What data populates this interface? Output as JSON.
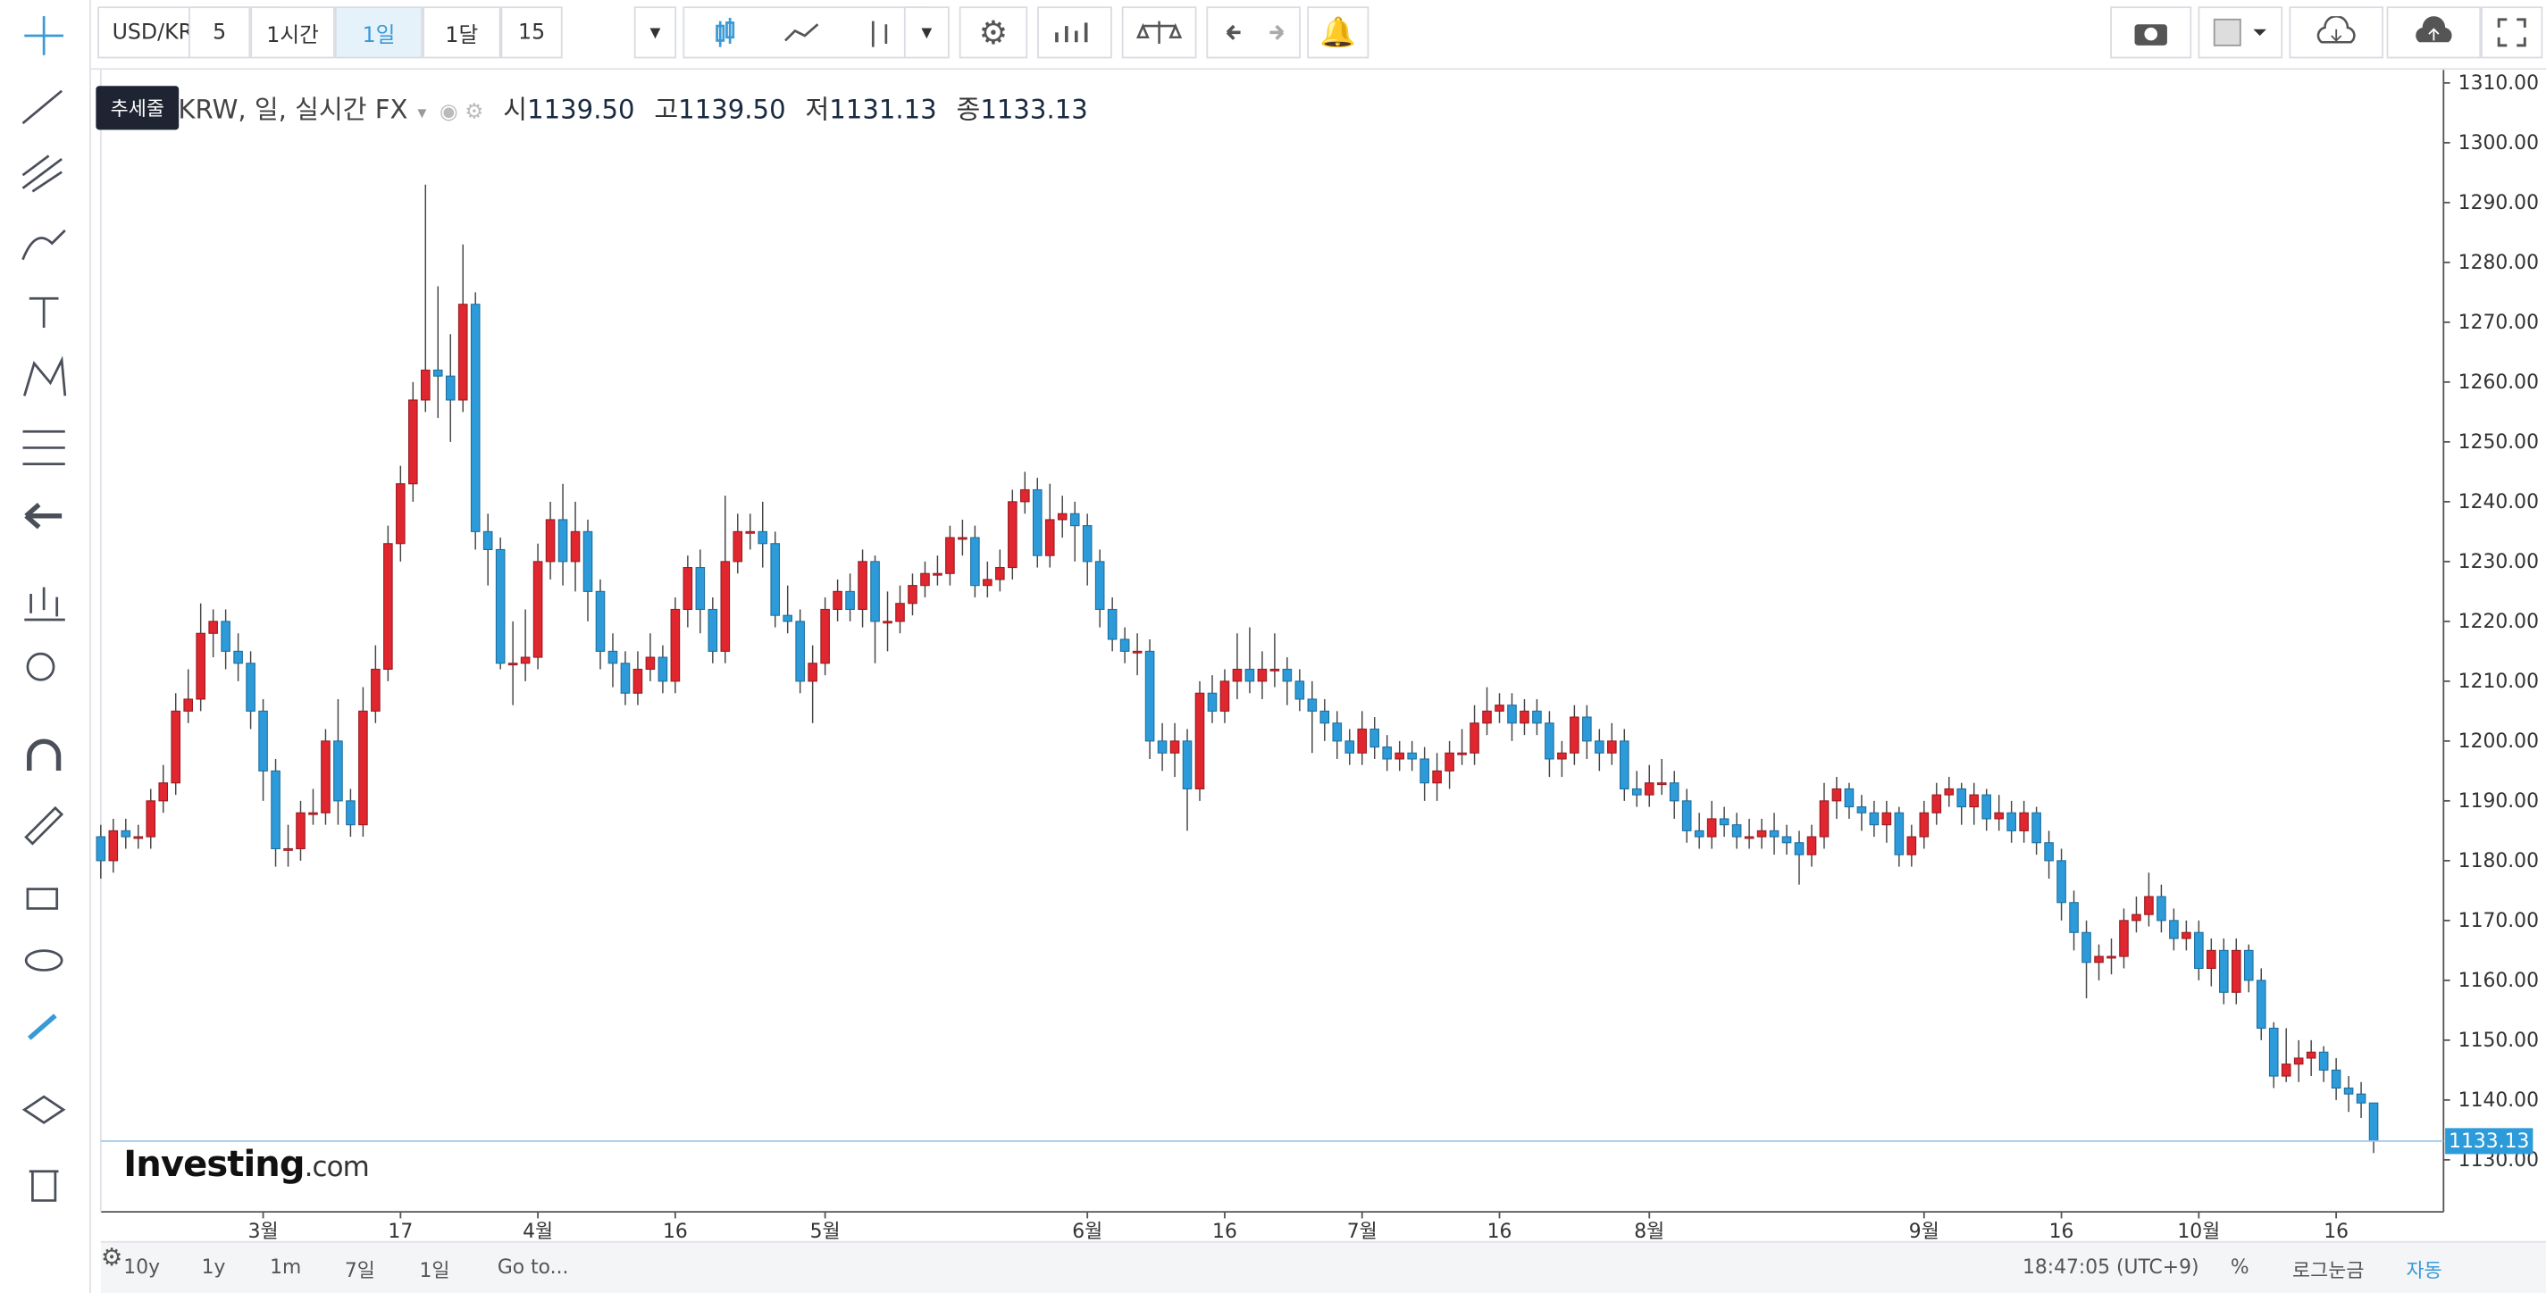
{
  "toolbar": {
    "symbol": "USD/KRW",
    "intervals": [
      "5",
      "1시간",
      "1일",
      "1달",
      "15"
    ],
    "active_interval": 2
  },
  "tooltip": "추세줄",
  "legend": {
    "title": "USD/KRW, 일, 실시간 FX",
    "ohlc": [
      {
        "label": "시",
        "value": "1139.50"
      },
      {
        "label": "고",
        "value": "1139.50"
      },
      {
        "label": "저",
        "value": "1131.13"
      },
      {
        "label": "종",
        "value": "1133.13"
      }
    ]
  },
  "watermark": {
    "brand": "Investing",
    "suffix": ".com"
  },
  "bottom_bar": {
    "ranges": [
      "10y",
      "1y",
      "1m",
      "7일",
      "1일"
    ],
    "goto": "Go to...",
    "time": "18:47:05 (UTC+9)",
    "options": [
      "%",
      "로그눈금",
      "자동"
    ]
  },
  "chart_data": {
    "type": "candlestick",
    "up_color": "#e0262f",
    "down_color": "#2d9bd9",
    "categories": [
      null,
      null,
      null,
      null,
      null,
      null,
      null,
      null,
      null,
      null,
      null,
      null,
      null,
      "3월",
      null,
      null,
      null,
      null,
      null,
      null,
      null,
      null,
      null,
      null,
      "17",
      null,
      null,
      null,
      null,
      null,
      null,
      null,
      null,
      null,
      null,
      "4월",
      null,
      null,
      null,
      null,
      null,
      null,
      null,
      null,
      null,
      null,
      "16",
      null,
      null,
      null,
      null,
      null,
      null,
      null,
      null,
      null,
      null,
      null,
      "5월",
      null,
      null,
      null,
      null,
      null,
      null,
      null,
      null,
      null,
      null,
      null,
      null,
      null,
      null,
      null,
      null,
      null,
      null,
      null,
      null,
      "6월",
      null,
      null,
      null,
      null,
      null,
      null,
      null,
      null,
      null,
      null,
      "16",
      null,
      null,
      null,
      null,
      null,
      null,
      null,
      null,
      null,
      null,
      "7월",
      null,
      null,
      null,
      null,
      null,
      null,
      null,
      null,
      null,
      null,
      "16",
      null,
      null,
      null,
      null,
      null,
      null,
      null,
      null,
      null,
      null,
      null,
      "8월",
      null,
      null,
      null,
      null,
      null,
      null,
      null,
      null,
      null,
      null,
      null,
      null,
      null,
      null,
      null,
      null,
      null,
      null,
      null,
      null,
      null,
      "9월",
      null,
      null,
      null,
      null,
      null,
      null,
      null,
      null,
      null,
      null,
      "16",
      null,
      null,
      null,
      null,
      null,
      null,
      null,
      null,
      null,
      null,
      "10월",
      null,
      null,
      null,
      null,
      null,
      null,
      null,
      null,
      null,
      null,
      "16",
      null,
      null,
      null
    ],
    "open": [
      1184,
      1180,
      1185,
      1184,
      1184,
      1190,
      1193,
      1205,
      1207,
      1218,
      1220,
      1215,
      1213,
      1205,
      1195,
      1182,
      1182,
      1188,
      1188,
      1200,
      1190,
      1186,
      1205,
      1212,
      1233,
      1243,
      1257,
      1262,
      1261,
      1257,
      1273,
      1235,
      1232,
      1213,
      1213,
      1214,
      1230,
      1237,
      1230,
      1235,
      1225,
      1215,
      1213,
      1208,
      1212,
      1214,
      1210,
      1222,
      1229,
      1222,
      1215,
      1230,
      1235,
      1235,
      1233,
      1221,
      1220,
      1210,
      1213,
      1222,
      1225,
      1222,
      1230,
      1220,
      1220,
      1223,
      1226,
      1228,
      1228,
      1234,
      1234,
      1226,
      1227,
      1229,
      1240,
      1242,
      1231,
      1237,
      1238,
      1236,
      1230,
      1222,
      1217,
      1215,
      1215,
      1200,
      1198,
      1200,
      1192,
      1208,
      1205,
      1210,
      1212,
      1210,
      1212,
      1212,
      1210,
      1207,
      1205,
      1203,
      1200,
      1198,
      1202,
      1199,
      1197,
      1198,
      1197,
      1193,
      1195,
      1198,
      1198,
      1203,
      1205,
      1206,
      1203,
      1205,
      1203,
      1197,
      1198,
      1204,
      1200,
      1198,
      1200,
      1192,
      1191,
      1193,
      1193,
      1190,
      1185,
      1184,
      1187,
      1186,
      1184,
      1184,
      1185,
      1184,
      1183,
      1181,
      1184,
      1190,
      1192,
      1189,
      1188,
      1186,
      1188,
      1181,
      1184,
      1188,
      1191,
      1192,
      1189,
      1191,
      1187,
      1188,
      1185,
      1188,
      1183,
      1180,
      1173,
      1168,
      1163,
      1164,
      1164,
      1170,
      1171,
      1174,
      1170,
      1167,
      1168,
      1162,
      1165,
      1158,
      1165,
      1160,
      1152,
      1144,
      1146,
      1147,
      1148,
      1145,
      1142,
      1141,
      1139.5
    ],
    "high": [
      1186,
      1187,
      1187,
      1186,
      1192,
      1196,
      1208,
      1212,
      1223,
      1222,
      1222,
      1218,
      1215,
      1207,
      1197,
      1186,
      1190,
      1192,
      1202,
      1207,
      1192,
      1209,
      1216,
      1236,
      1246,
      1260,
      1293,
      1276,
      1268,
      1283,
      1275,
      1238,
      1234,
      1220,
      1222,
      1233,
      1240,
      1243,
      1240,
      1237,
      1227,
      1218,
      1215,
      1215,
      1218,
      1216,
      1224,
      1231,
      1232,
      1224,
      1241,
      1238,
      1238,
      1240,
      1235,
      1226,
      1222,
      1216,
      1224,
      1227,
      1228,
      1232,
      1231,
      1225,
      1226,
      1228,
      1230,
      1231,
      1236,
      1237,
      1236,
      1230,
      1232,
      1242,
      1245,
      1244,
      1243,
      1241,
      1240,
      1238,
      1232,
      1224,
      1219,
      1218,
      1217,
      1203,
      1203,
      1202,
      1210,
      1211,
      1212,
      1218,
      1219,
      1215,
      1218,
      1214,
      1212,
      1210,
      1207,
      1205,
      1202,
      1205,
      1204,
      1201,
      1200,
      1200,
      1199,
      1198,
      1200,
      1202,
      1206,
      1209,
      1208,
      1208,
      1207,
      1207,
      1205,
      1200,
      1206,
      1206,
      1202,
      1203,
      1202,
      1195,
      1196,
      1197,
      1195,
      1192,
      1188,
      1190,
      1189,
      1188,
      1187,
      1187,
      1188,
      1186,
      1185,
      1186,
      1193,
      1194,
      1193,
      1191,
      1190,
      1190,
      1189,
      1186,
      1190,
      1193,
      1194,
      1193,
      1193,
      1192,
      1191,
      1190,
      1190,
      1189,
      1185,
      1182,
      1175,
      1170,
      1166,
      1167,
      1172,
      1174,
      1178,
      1176,
      1172,
      1170,
      1170,
      1167,
      1167,
      1167,
      1166,
      1162,
      1153,
      1152,
      1150,
      1150,
      1149,
      1147,
      1144,
      1143,
      1139.5
    ],
    "low": [
      1177,
      1178,
      1182,
      1182,
      1182,
      1188,
      1191,
      1203,
      1205,
      1214,
      1212,
      1210,
      1202,
      1190,
      1179,
      1179,
      1180,
      1186,
      1186,
      1186,
      1184,
      1184,
      1203,
      1210,
      1230,
      1240,
      1255,
      1254,
      1250,
      1255,
      1232,
      1226,
      1212,
      1206,
      1210,
      1212,
      1227,
      1226,
      1225,
      1220,
      1212,
      1209,
      1206,
      1206,
      1210,
      1208,
      1208,
      1219,
      1218,
      1213,
      1213,
      1228,
      1232,
      1229,
      1219,
      1218,
      1208,
      1203,
      1211,
      1220,
      1220,
      1219,
      1213,
      1215,
      1218,
      1221,
      1224,
      1226,
      1226,
      1231,
      1224,
      1224,
      1225,
      1227,
      1238,
      1229,
      1229,
      1234,
      1230,
      1226,
      1219,
      1215,
      1213,
      1211,
      1197,
      1195,
      1194,
      1185,
      1190,
      1203,
      1203,
      1207,
      1208,
      1207,
      1209,
      1206,
      1205,
      1198,
      1200,
      1197,
      1196,
      1196,
      1197,
      1195,
      1195,
      1195,
      1190,
      1190,
      1192,
      1196,
      1196,
      1201,
      1203,
      1200,
      1201,
      1201,
      1194,
      1194,
      1196,
      1197,
      1195,
      1196,
      1190,
      1189,
      1189,
      1191,
      1187,
      1183,
      1182,
      1182,
      1184,
      1182,
      1182,
      1182,
      1181,
      1181,
      1176,
      1179,
      1182,
      1187,
      1187,
      1185,
      1184,
      1183,
      1179,
      1179,
      1182,
      1186,
      1189,
      1186,
      1186,
      1185,
      1185,
      1183,
      1183,
      1181,
      1177,
      1170,
      1165,
      1157,
      1160,
      1161,
      1162,
      1168,
      1169,
      1168,
      1165,
      1165,
      1160,
      1159,
      1156,
      1156,
      1158,
      1150,
      1142,
      1143,
      1143,
      1144,
      1143,
      1140,
      1138,
      1137,
      1131.13
    ],
    "close": [
      1180,
      1185,
      1184,
      1184,
      1190,
      1193,
      1205,
      1207,
      1218,
      1220,
      1215,
      1213,
      1205,
      1195,
      1182,
      1182,
      1188,
      1188,
      1200,
      1190,
      1186,
      1205,
      1212,
      1233,
      1243,
      1257,
      1262,
      1261,
      1257,
      1273,
      1235,
      1232,
      1213,
      1213,
      1214,
      1230,
      1237,
      1230,
      1235,
      1225,
      1215,
      1213,
      1208,
      1212,
      1214,
      1210,
      1222,
      1229,
      1222,
      1215,
      1230,
      1235,
      1235,
      1233,
      1221,
      1220,
      1210,
      1213,
      1222,
      1225,
      1222,
      1230,
      1220,
      1220,
      1223,
      1226,
      1228,
      1228,
      1234,
      1234,
      1226,
      1227,
      1229,
      1240,
      1242,
      1231,
      1237,
      1238,
      1236,
      1230,
      1222,
      1217,
      1215,
      1215,
      1200,
      1198,
      1200,
      1192,
      1208,
      1205,
      1210,
      1212,
      1210,
      1212,
      1212,
      1210,
      1207,
      1205,
      1203,
      1200,
      1198,
      1202,
      1199,
      1197,
      1198,
      1197,
      1193,
      1195,
      1198,
      1198,
      1203,
      1205,
      1206,
      1203,
      1205,
      1203,
      1197,
      1198,
      1204,
      1200,
      1198,
      1200,
      1192,
      1191,
      1193,
      1193,
      1190,
      1185,
      1184,
      1187,
      1186,
      1184,
      1184,
      1185,
      1184,
      1183,
      1181,
      1184,
      1190,
      1192,
      1189,
      1188,
      1186,
      1188,
      1181,
      1184,
      1188,
      1191,
      1192,
      1189,
      1191,
      1187,
      1188,
      1185,
      1188,
      1183,
      1180,
      1173,
      1168,
      1163,
      1164,
      1164,
      1170,
      1171,
      1174,
      1170,
      1167,
      1168,
      1162,
      1165,
      1158,
      1165,
      1160,
      1152,
      1144,
      1146,
      1147,
      1148,
      1145,
      1142,
      1141,
      1139.5,
      1133.13
    ],
    "ylim": [
      1121.3,
      1312.2
    ],
    "yticks": [
      {
        "value": 1130,
        "label": "1130.00"
      },
      {
        "value": 1140,
        "label": "1140.00"
      },
      {
        "value": 1150,
        "label": "1150.00"
      },
      {
        "value": 1160,
        "label": "1160.00"
      },
      {
        "value": 1170,
        "label": "1170.00"
      },
      {
        "value": 1180,
        "label": "1180.00"
      },
      {
        "value": 1190,
        "label": "1190.00"
      },
      {
        "value": 1200,
        "label": "1200.00"
      },
      {
        "value": 1210,
        "label": "1210.00"
      },
      {
        "value": 1220,
        "label": "1220.00"
      },
      {
        "value": 1230,
        "label": "1230.00"
      },
      {
        "value": 1240,
        "label": "1240.00"
      },
      {
        "value": 1250,
        "label": "1250.00"
      },
      {
        "value": 1260,
        "label": "1260.00"
      },
      {
        "value": 1270,
        "label": "1270.00"
      },
      {
        "value": 1280,
        "label": "1280.00"
      },
      {
        "value": 1290,
        "label": "1290.00"
      },
      {
        "value": 1300,
        "label": "1300.00"
      },
      {
        "value": 1310,
        "label": "1310.00"
      }
    ],
    "grid": false
  }
}
